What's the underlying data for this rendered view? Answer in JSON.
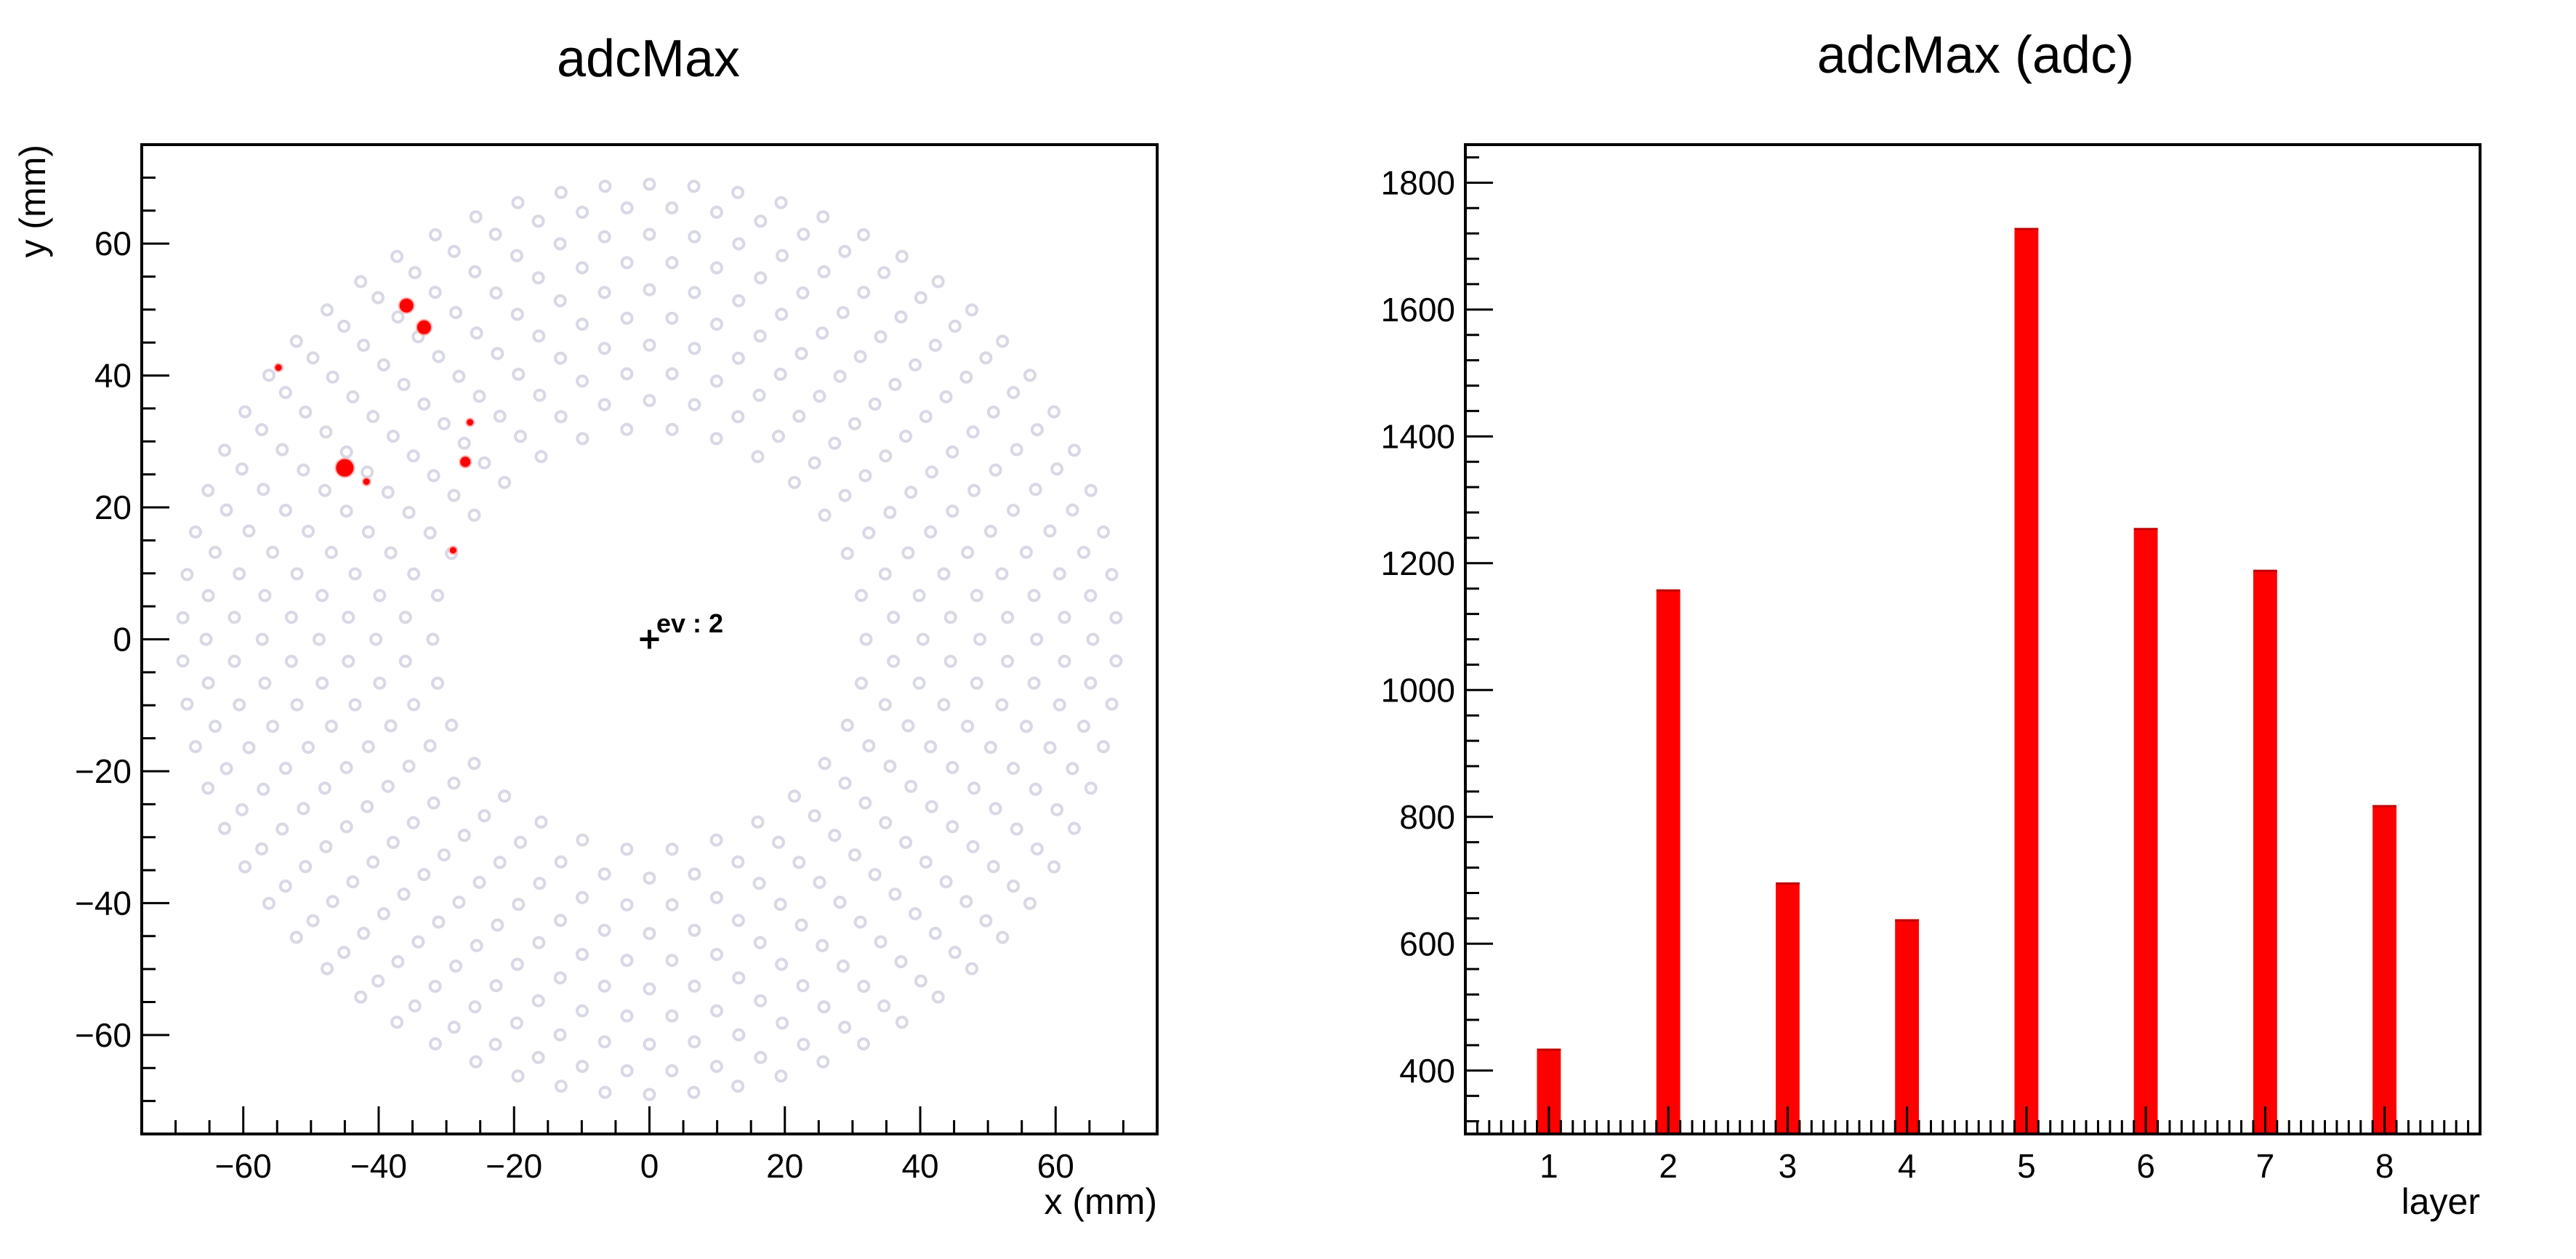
{
  "chart_data": [
    {
      "type": "scatter",
      "title": "adcMax",
      "xlabel": "x (mm)",
      "ylabel": "y (mm)",
      "xlim": [
        -75,
        75
      ],
      "ylim": [
        -75,
        75
      ],
      "x_ticks": [
        -60,
        -40,
        -20,
        0,
        20,
        40,
        60
      ],
      "y_ticks": [
        -60,
        -40,
        -20,
        0,
        20,
        40,
        60
      ],
      "annotation": "ev : 2",
      "marker": "+",
      "marker_position": [
        0,
        0
      ],
      "grid": false,
      "background_pads": {
        "color": "#d8d8e6",
        "rings": [
          {
            "radius": 32.0,
            "count": 30
          },
          {
            "radius": 36.2,
            "count": 34
          },
          {
            "radius": 40.4,
            "count": 38
          },
          {
            "radius": 44.6,
            "count": 42
          },
          {
            "radius": 48.8,
            "count": 46
          },
          {
            "radius": 53.0,
            "count": 50
          },
          {
            "radius": 57.2,
            "count": 54
          },
          {
            "radius": 61.4,
            "count": 58
          },
          {
            "radius": 65.5,
            "count": 62
          },
          {
            "radius": 69.0,
            "count": 66
          }
        ]
      },
      "hits": [
        {
          "x": -54.8,
          "y": 41.2,
          "size": 1
        },
        {
          "x": -35.9,
          "y": 50.6,
          "size": 3
        },
        {
          "x": -33.3,
          "y": 47.3,
          "size": 3
        },
        {
          "x": -45.0,
          "y": 26.0,
          "size": 4
        },
        {
          "x": -41.8,
          "y": 23.9,
          "size": 1
        },
        {
          "x": -26.5,
          "y": 32.9,
          "size": 1
        },
        {
          "x": -27.2,
          "y": 26.9,
          "size": 2
        },
        {
          "x": -29.0,
          "y": 13.5,
          "size": 1
        }
      ],
      "hit_color": "#ff0000"
    },
    {
      "type": "bar",
      "title": "adcMax (adc)",
      "xlabel": "layer",
      "ylabel": "",
      "categories": [
        "1",
        "2",
        "3",
        "4",
        "5",
        "6",
        "7",
        "8"
      ],
      "values": [
        433,
        1157,
        695,
        637,
        1727,
        1254,
        1188,
        817
      ],
      "ylim": [
        300,
        1860
      ],
      "y_ticks": [
        400,
        600,
        800,
        1000,
        1200,
        1400,
        1600,
        1800
      ],
      "bar_color": "#ff0000",
      "grid": false
    }
  ]
}
